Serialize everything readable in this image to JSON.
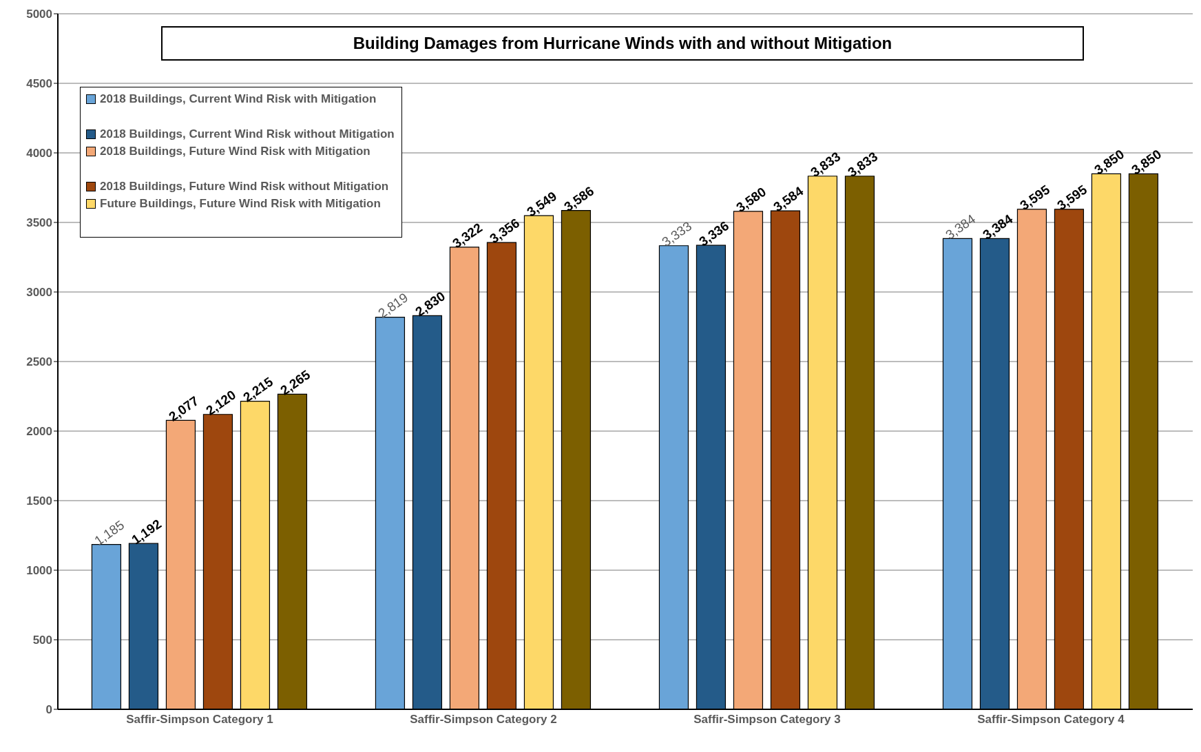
{
  "chart_data": {
    "type": "bar",
    "title": "Building Damages from Hurricane Winds with and without Mitigation",
    "categories": [
      "Saffir-Simpson Category 1",
      "Saffir-Simpson Category 2",
      "Saffir-Simpson Category 3",
      "Saffir-Simpson Category 4"
    ],
    "series": [
      {
        "name": "2018 Buildings, Current Wind Risk with Mitigation",
        "color": "#69a4d8",
        "values": [
          1185,
          2819,
          3333,
          3384
        ],
        "value_labels": [
          "1,185",
          "2,819",
          "3,333",
          "3,384"
        ]
      },
      {
        "name": "2018 Buildings, Current Wind Risk without Mitigation",
        "color": "#245b89",
        "values": [
          1192,
          2830,
          3336,
          3384
        ],
        "value_labels": [
          "1,192",
          "2,830",
          "3,336",
          "3,384"
        ]
      },
      {
        "name": "2018 Buildings, Future Wind Risk with Mitigation",
        "color": "#f3a877",
        "values": [
          2077,
          3322,
          3580,
          3595
        ],
        "value_labels": [
          "2,077",
          "3,322",
          "3,580",
          "3,595"
        ]
      },
      {
        "name": "2018 Buildings, Future Wind Risk without Mitigation",
        "color": "#9e470e",
        "values": [
          2120,
          3356,
          3584,
          3595
        ],
        "value_labels": [
          "2,120",
          "3,356",
          "3,584",
          "3,595"
        ]
      },
      {
        "name": "Future Buildings, Future Wind Risk with Mitigation",
        "color": "#fdd868",
        "values": [
          2215,
          3549,
          3833,
          3850
        ],
        "value_labels": [
          "2,215",
          "3,549",
          "3,833",
          "3,850"
        ]
      },
      {
        "color": "#7c5f00",
        "values": [
          2265,
          3586,
          3833,
          3850
        ],
        "value_labels": [
          "2,265",
          "3,586",
          "3,833",
          "3,850"
        ]
      }
    ],
    "ylim": [
      0,
      5000
    ],
    "yticks": [
      0,
      500,
      1000,
      1500,
      2000,
      2500,
      3000,
      3500,
      4000,
      4500,
      5000
    ],
    "grid": "y",
    "legend": "top left"
  }
}
